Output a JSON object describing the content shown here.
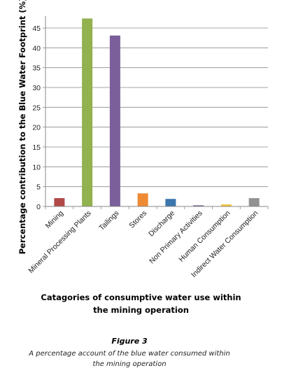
{
  "chart_data": {
    "type": "bar",
    "categories": [
      "Mining",
      "Mineral Processing Plants",
      "Tailings",
      "Stores",
      "Discharge",
      "Non Primary Activities",
      "Human Consumption",
      "Indirect Water Consumption"
    ],
    "values": [
      2.1,
      47.4,
      43.1,
      3.3,
      1.9,
      0.3,
      0.5,
      2.1
    ],
    "colors": [
      "#b14a47",
      "#92b14f",
      "#7a5f9b",
      "#ef8a34",
      "#3d76ad",
      "#7f6a9e",
      "#f2c231",
      "#929292"
    ],
    "yticks": [
      0,
      5,
      10,
      15,
      20,
      25,
      30,
      35,
      40,
      45
    ],
    "ylim": [
      0,
      48
    ],
    "grid": true,
    "ylabel": "Percentage contribution to the Blue Water Footprint (%)",
    "xlabel": [
      "Catagories of consumptive water use within",
      "the mining operation"
    ]
  },
  "figure": {
    "label": "Figure 3",
    "caption": [
      "A percentage account of the blue water consumed within",
      "the mining operation"
    ]
  }
}
